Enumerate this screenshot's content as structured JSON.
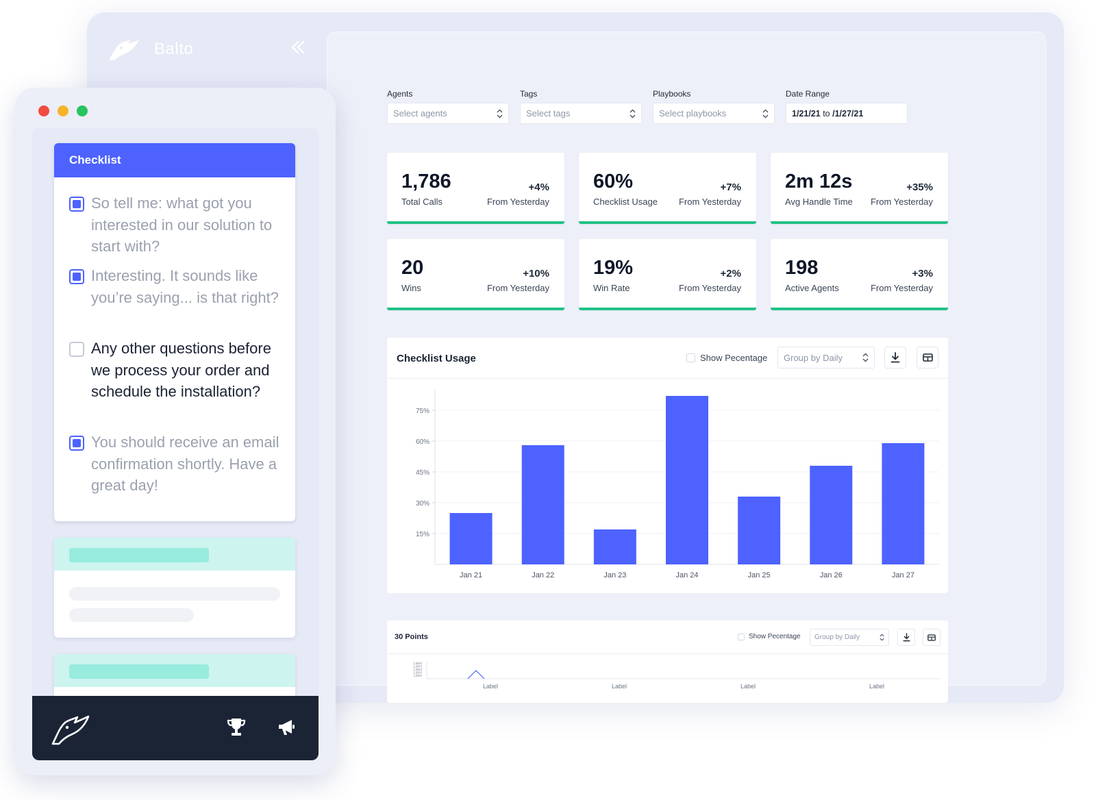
{
  "app": {
    "name": "Balto",
    "collapse_icon": "double-chevron-left-icon"
  },
  "filters": [
    {
      "label": "Agents",
      "placeholder": "Select agents"
    },
    {
      "label": "Tags",
      "placeholder": "Select tags"
    },
    {
      "label": "Playbooks",
      "placeholder": "Select playbooks"
    }
  ],
  "date_range": {
    "label": "Date Range",
    "from": "1/21/21",
    "sep": "to",
    "to": "/1/27/21"
  },
  "stats": [
    {
      "value": "1,786",
      "label": "Total Calls",
      "delta": "+4%",
      "from": "From Yesterday"
    },
    {
      "value": "60%",
      "label": "Checklist Usage",
      "delta": "+7%",
      "from": "From Yesterday"
    },
    {
      "value": "2m 12s",
      "label": "Avg Handle Time",
      "delta": "+35%",
      "from": "From Yesterday"
    },
    {
      "value": "20",
      "label": "Wins",
      "delta": "+10%",
      "from": "From Yesterday"
    },
    {
      "value": "19%",
      "label": "Win Rate",
      "delta": "+2%",
      "from": "From Yesterday"
    },
    {
      "value": "198",
      "label": "Active Agents",
      "delta": "+3%",
      "from": "From Yesterday"
    }
  ],
  "chart_card": {
    "title": "Checklist Usage",
    "show_percentage": "Show Pecentage",
    "group_by": "Group by Daily",
    "download_icon": "download-icon",
    "table_icon": "table-icon"
  },
  "chart_data": {
    "type": "bar",
    "categories": [
      "Jan 21",
      "Jan 22",
      "Jan 23",
      "Jan 24",
      "Jan 25",
      "Jan 26",
      "Jan 27"
    ],
    "values": [
      25,
      58,
      17,
      82,
      33,
      48,
      59
    ],
    "yticks": [
      15,
      30,
      45,
      60,
      75
    ],
    "ytick_labels": [
      "15%",
      "30%",
      "45%",
      "60%",
      "75%"
    ],
    "ylim": [
      0,
      85
    ],
    "bar_color": "#4d62ff",
    "grid": true
  },
  "mini_card": {
    "title": "30 Points",
    "show_percentage": "Show Pecentage",
    "group_by": "Group by Daily",
    "x_labels": [
      "Label",
      "Label",
      "Label",
      "Label"
    ],
    "y_labels": [
      "Label",
      "Label",
      "Label",
      "Label",
      "Label"
    ]
  },
  "checklist": {
    "title": "Checklist",
    "items": [
      {
        "text": "So tell me: what got you interested in our solution to start with?",
        "checked": true
      },
      {
        "text": "Interesting. It sounds like you’re saying... is that right?",
        "checked": true
      },
      {
        "text": "Any other questions before we process your order and schedule the installation?",
        "checked": false
      },
      {
        "text": "You should receive an email confirmation shortly. Have a great day!",
        "checked": true
      }
    ]
  },
  "window_dots": [
    "#f24b41",
    "#f6b42a",
    "#27c35d"
  ],
  "colors": {
    "accent": "#4d62ff",
    "success": "#22c285",
    "dark": "#1b2435",
    "mint": "#97ecdd"
  }
}
